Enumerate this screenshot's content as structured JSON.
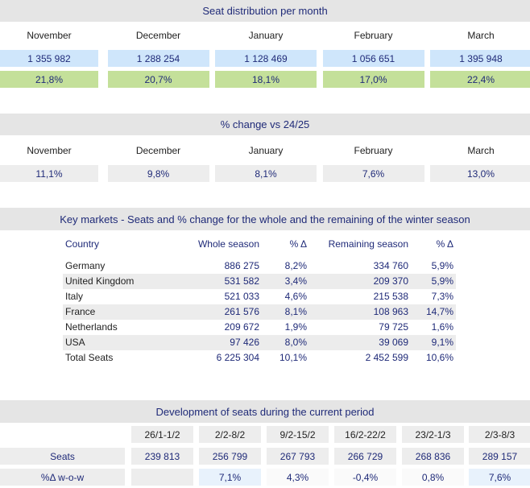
{
  "distribution": {
    "title": "Seat distribution per month",
    "months": [
      "November",
      "December",
      "January",
      "February",
      "March"
    ],
    "seats": [
      "1 355 982",
      "1 288 254",
      "1 128 469",
      "1 056 651",
      "1 395 948"
    ],
    "shares": [
      "21,8%",
      "20,7%",
      "18,1%",
      "17,0%",
      "22,4%"
    ]
  },
  "change": {
    "title": "% change vs 24/25",
    "months": [
      "November",
      "December",
      "January",
      "February",
      "March"
    ],
    "values": [
      "11,1%",
      "9,8%",
      "8,1%",
      "7,6%",
      "13,0%"
    ]
  },
  "markets": {
    "title": "Key markets - Seats and % change for the whole and the remaining of the winter season",
    "columns": [
      "Country",
      "Whole season",
      "% Δ",
      "Remaining season",
      "% Δ"
    ],
    "rows": [
      [
        "Germany",
        "886 275",
        "8,2%",
        "334 760",
        "5,9%"
      ],
      [
        "United Kingdom",
        "531 582",
        "3,4%",
        "209 370",
        "5,9%"
      ],
      [
        "Italy",
        "521 033",
        "4,6%",
        "215 538",
        "7,3%"
      ],
      [
        "France",
        "261 576",
        "8,1%",
        "108 963",
        "14,7%"
      ],
      [
        "Netherlands",
        "209 672",
        "1,9%",
        "79 725",
        "1,6%"
      ],
      [
        "USA",
        "97 426",
        "8,0%",
        "39 069",
        "9,1%"
      ],
      [
        "Total Seats",
        "6 225 304",
        "10,1%",
        "2 452 599",
        "10,6%"
      ]
    ]
  },
  "development": {
    "title": "Development of seats during the current period",
    "periods": [
      "26/1-1/2",
      "2/2-8/2",
      "9/2-15/2",
      "16/2-22/2",
      "23/2-1/3",
      "2/3-8/3"
    ],
    "rows": [
      {
        "label": "Seats",
        "values": [
          "239 813",
          "256 799",
          "267 793",
          "266 729",
          "268 836",
          "289 157"
        ]
      },
      {
        "label": "%Δ w-o-w",
        "values": [
          null,
          "7,1%",
          "4,3%",
          "-0,4%",
          "0,8%",
          "7,6%"
        ]
      }
    ]
  }
}
